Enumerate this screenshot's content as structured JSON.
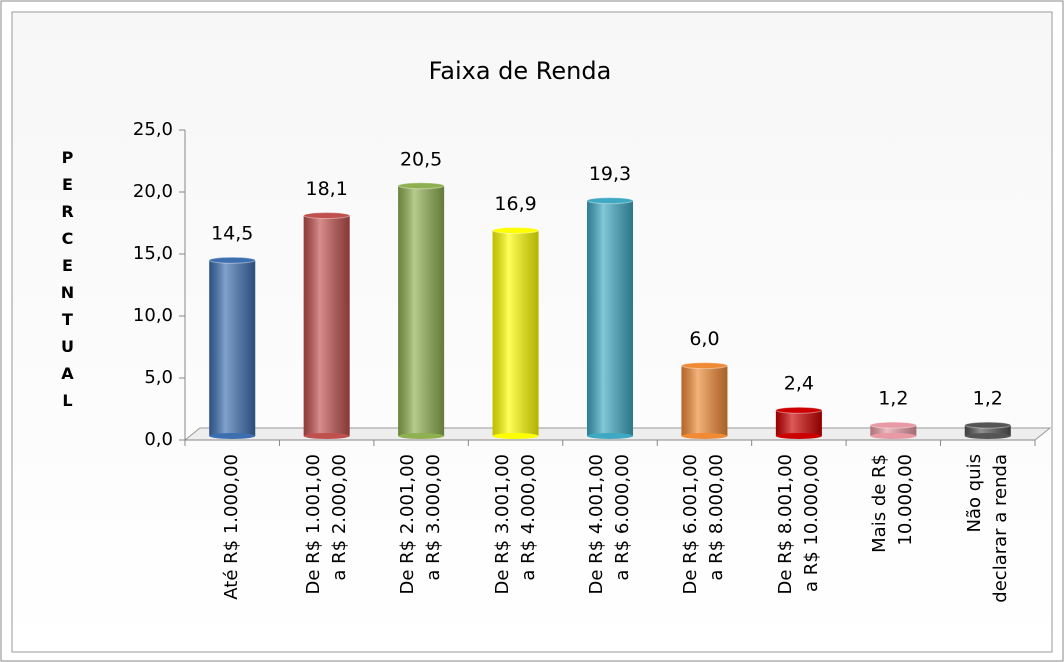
{
  "chart_data": {
    "type": "bar",
    "title": "Faixa de Renda",
    "y_label": "PERCENTUAL",
    "categories": [
      "Até R$ 1.000,00",
      "De R$ 1.001,00\na R$ 2.000,00",
      "De R$ 2.001,00\na R$ 3.000,00",
      "De R$ 3.001,00\na R$ 4.000,00",
      "De R$ 4.001,00\na R$ 6.000,00",
      "De R$ 6.001,00\na R$ 8.000,00",
      "De R$ 8.001,00\na R$ 10.000,00",
      "Mais de R$\n10.000,00",
      "Não quis\ndeclarar a renda"
    ],
    "values": [
      14.5,
      18.1,
      20.5,
      16.9,
      19.3,
      6.0,
      2.4,
      1.2,
      1.2
    ],
    "value_labels": [
      "14,5",
      "18,1",
      "20,5",
      "16,9",
      "19,3",
      "6,0",
      "2,4",
      "1,2",
      "1,2"
    ],
    "colors": [
      "#3d6fb0",
      "#c0504d",
      "#8fb050",
      "#ffff00",
      "#3fa9c4",
      "#f08a35",
      "#cc0000",
      "#e89aa4",
      "#555555"
    ],
    "ylim": [
      0,
      25
    ],
    "yticks": [
      {
        "value": 0,
        "label": "0,0"
      },
      {
        "value": 5,
        "label": "5,0"
      },
      {
        "value": 10,
        "label": "10,0"
      },
      {
        "value": 15,
        "label": "15,0"
      },
      {
        "value": 20,
        "label": "20,0"
      },
      {
        "value": 25,
        "label": "25,0"
      }
    ]
  }
}
